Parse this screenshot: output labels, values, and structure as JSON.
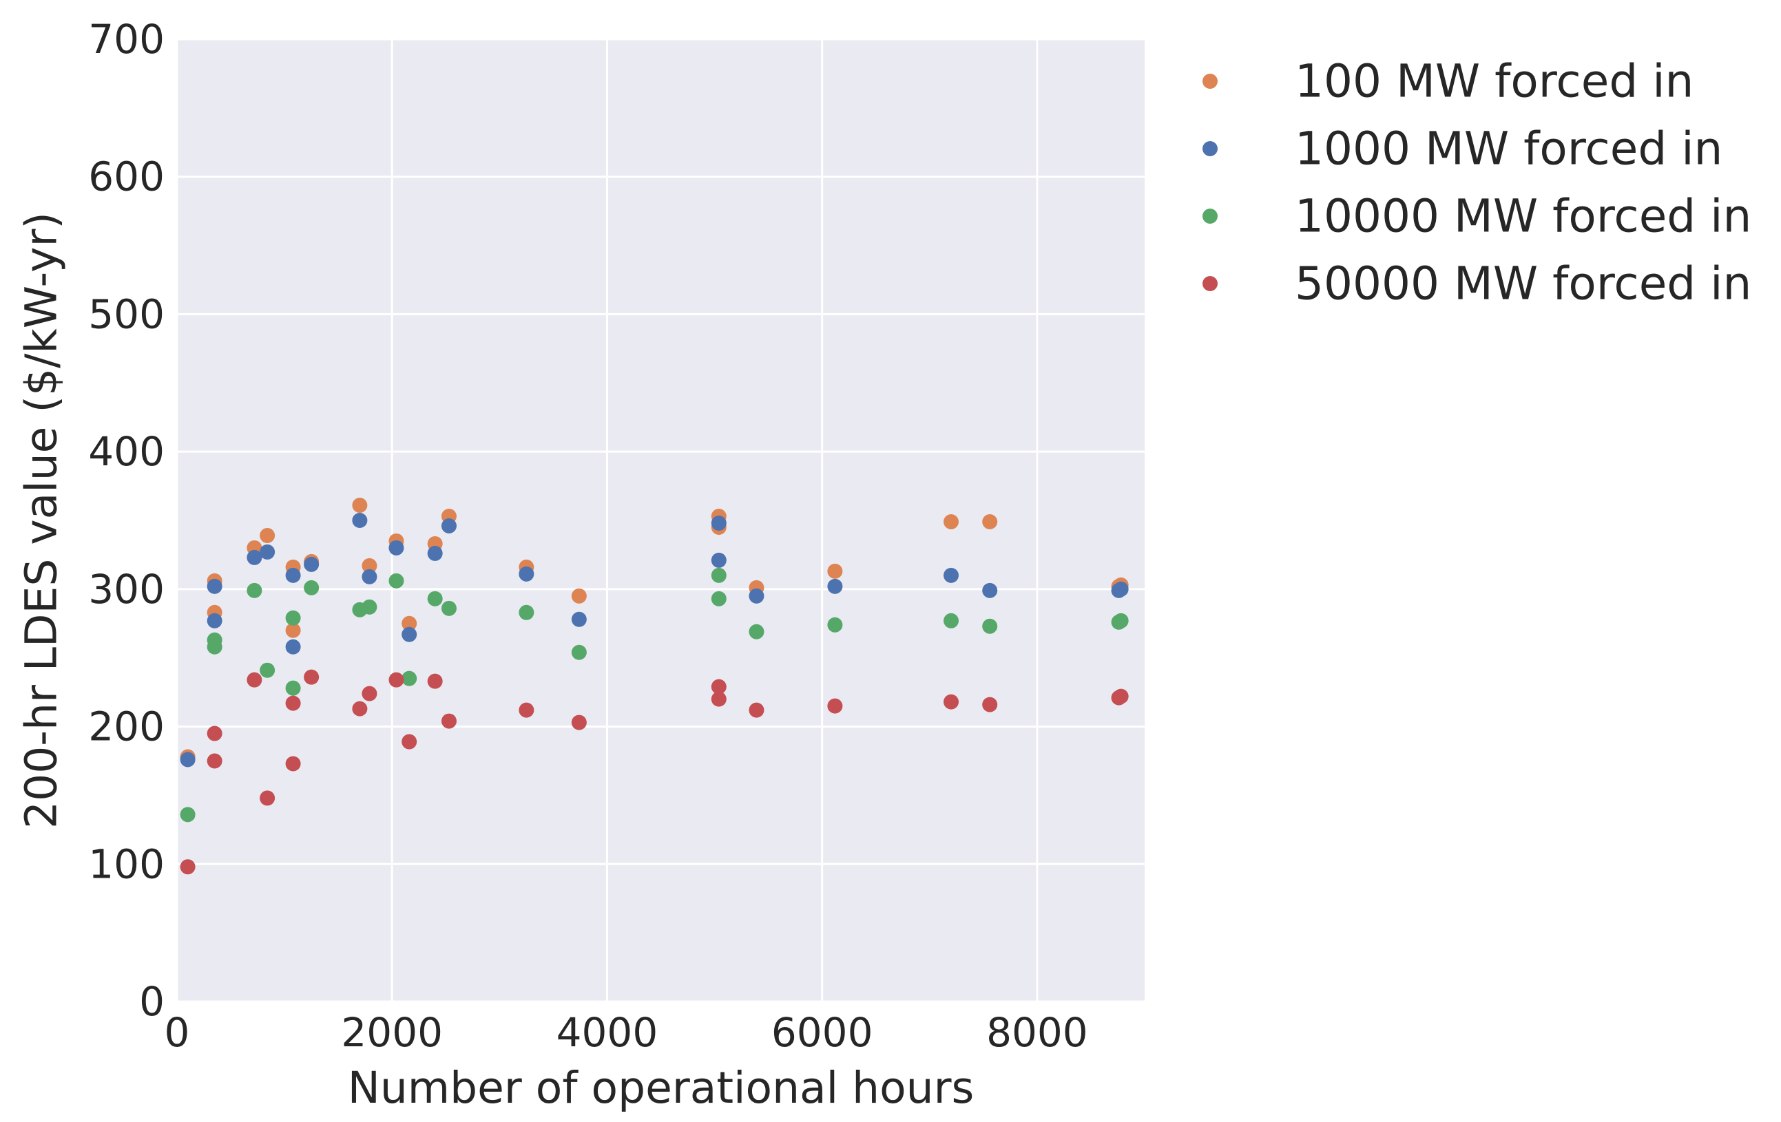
{
  "chart_data": {
    "type": "scatter",
    "xlabel": "Number of operational hours",
    "ylabel": "200-hr LDES value ($/kW-yr)",
    "xlim": [
      0,
      9000
    ],
    "ylim": [
      0,
      700
    ],
    "xticks": [
      0,
      2000,
      4000,
      6000,
      8000
    ],
    "yticks": [
      0,
      100,
      200,
      300,
      400,
      500,
      600,
      700
    ],
    "grid": true,
    "background": "#eaeaf2",
    "legend_position": "outside-top-right",
    "series": [
      {
        "name": "100 MW forced in",
        "color": "#dd8452",
        "points": [
          [
            100,
            178
          ],
          [
            350,
            306
          ],
          [
            350,
            283
          ],
          [
            720,
            330
          ],
          [
            840,
            339
          ],
          [
            1080,
            316
          ],
          [
            1080,
            270
          ],
          [
            1250,
            320
          ],
          [
            1700,
            361
          ],
          [
            1790,
            317
          ],
          [
            2040,
            335
          ],
          [
            2160,
            275
          ],
          [
            2400,
            333
          ],
          [
            2530,
            353
          ],
          [
            3250,
            316
          ],
          [
            3740,
            295
          ],
          [
            5040,
            353
          ],
          [
            5040,
            345
          ],
          [
            5390,
            301
          ],
          [
            6120,
            313
          ],
          [
            7200,
            349
          ],
          [
            7560,
            349
          ],
          [
            8760,
            302
          ],
          [
            8780,
            303
          ]
        ]
      },
      {
        "name": "1000 MW forced in",
        "color": "#4c72b0",
        "points": [
          [
            100,
            176
          ],
          [
            350,
            302
          ],
          [
            350,
            277
          ],
          [
            720,
            323
          ],
          [
            840,
            327
          ],
          [
            1080,
            310
          ],
          [
            1080,
            258
          ],
          [
            1250,
            318
          ],
          [
            1700,
            350
          ],
          [
            1790,
            309
          ],
          [
            2040,
            330
          ],
          [
            2160,
            267
          ],
          [
            2400,
            326
          ],
          [
            2530,
            346
          ],
          [
            3250,
            311
          ],
          [
            3740,
            278
          ],
          [
            5040,
            348
          ],
          [
            5040,
            321
          ],
          [
            5390,
            295
          ],
          [
            6120,
            302
          ],
          [
            7200,
            310
          ],
          [
            7560,
            299
          ],
          [
            8760,
            299
          ],
          [
            8780,
            300
          ]
        ]
      },
      {
        "name": "10000 MW forced in",
        "color": "#55a868",
        "points": [
          [
            100,
            136
          ],
          [
            350,
            263
          ],
          [
            350,
            258
          ],
          [
            720,
            299
          ],
          [
            840,
            241
          ],
          [
            1080,
            279
          ],
          [
            1080,
            228
          ],
          [
            1250,
            301
          ],
          [
            1700,
            285
          ],
          [
            1790,
            287
          ],
          [
            2040,
            306
          ],
          [
            2160,
            235
          ],
          [
            2400,
            293
          ],
          [
            2530,
            286
          ],
          [
            3250,
            283
          ],
          [
            3740,
            254
          ],
          [
            5040,
            310
          ],
          [
            5040,
            293
          ],
          [
            5390,
            269
          ],
          [
            6120,
            274
          ],
          [
            7200,
            277
          ],
          [
            7560,
            273
          ],
          [
            8760,
            276
          ],
          [
            8780,
            277
          ]
        ]
      },
      {
        "name": "50000 MW forced in",
        "color": "#c44e52",
        "points": [
          [
            100,
            98
          ],
          [
            350,
            195
          ],
          [
            350,
            175
          ],
          [
            720,
            234
          ],
          [
            840,
            148
          ],
          [
            1080,
            217
          ],
          [
            1080,
            173
          ],
          [
            1250,
            236
          ],
          [
            1700,
            213
          ],
          [
            1790,
            224
          ],
          [
            2040,
            234
          ],
          [
            2160,
            189
          ],
          [
            2400,
            233
          ],
          [
            2530,
            204
          ],
          [
            3250,
            212
          ],
          [
            3740,
            203
          ],
          [
            5040,
            229
          ],
          [
            5040,
            220
          ],
          [
            5390,
            212
          ],
          [
            6120,
            215
          ],
          [
            7200,
            218
          ],
          [
            7560,
            216
          ],
          [
            8760,
            221
          ],
          [
            8780,
            222
          ]
        ]
      }
    ]
  }
}
